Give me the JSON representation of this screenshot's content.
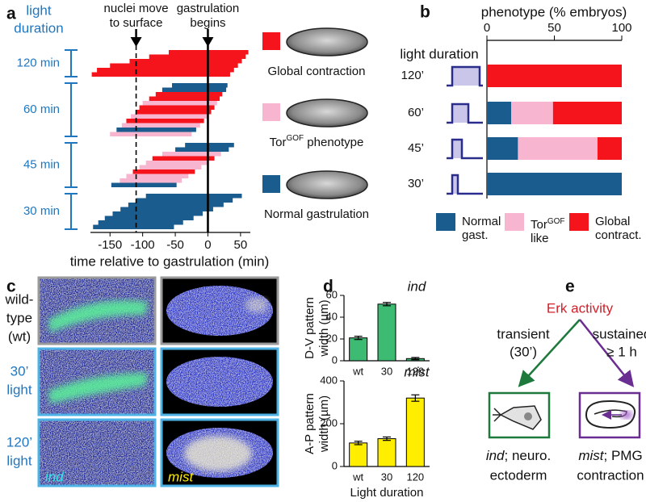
{
  "panel_labels": [
    "a",
    "b",
    "c",
    "d",
    "e"
  ],
  "chart_data": [
    {
      "type": "timeline",
      "ylabel": [
        "light",
        "duration"
      ],
      "xlabel": "time relative to gastrulation (min)",
      "xlim": [
        -180,
        65
      ],
      "xticks": [
        -150,
        -100,
        -50,
        0,
        50
      ],
      "annotations": [
        {
          "text": [
            "nuclei move",
            "to surface"
          ],
          "x": -110,
          "dashed": true
        },
        {
          "text": [
            "gastrulation",
            "begins"
          ],
          "x": 0,
          "dashed": false
        }
      ],
      "groups": [
        {
          "label": "120 min",
          "start": [
            -60,
            -90,
            -120,
            -150,
            -170,
            -178
          ],
          "end": [
            62,
            58,
            52,
            46,
            40,
            34
          ],
          "colors": [
            "#f5141b",
            "#f5141b",
            "#f5141b",
            "#f5141b",
            "#f5141b",
            "#f5141b"
          ]
        },
        {
          "label": "60 min",
          "start": [
            -55,
            -70,
            -80,
            -90,
            -100,
            -105,
            -110,
            -118,
            -125,
            -132,
            -140,
            -150
          ],
          "end": [
            30,
            28,
            22,
            18,
            14,
            10,
            5,
            0,
            -6,
            -12,
            -18,
            -25
          ],
          "colors": [
            "#1b5c8e",
            "#1b5c8e",
            "#f5141b",
            "#f5141b",
            "#f7b5cf",
            "#f5141b",
            "#f5141b",
            "#f7b5cf",
            "#f5141b",
            "#f7b5cf",
            "#1b5c8e",
            "#f7b5cf"
          ]
        },
        {
          "label": "45 min",
          "start": [
            -35,
            -50,
            -70,
            -85,
            -95,
            -105,
            -115,
            -125,
            -135,
            -148
          ],
          "end": [
            40,
            32,
            20,
            10,
            0,
            -10,
            -20,
            -30,
            -40,
            -48
          ],
          "colors": [
            "#1b5c8e",
            "#1b5c8e",
            "#f7b5cf",
            "#f5141b",
            "#f7b5cf",
            "#f7b5cf",
            "#f5141b",
            "#f7b5cf",
            "#f7b5cf",
            "#1b5c8e"
          ]
        },
        {
          "label": "30 min",
          "start": [
            -95,
            -110,
            -122,
            -134,
            -146,
            -158,
            -168,
            -176
          ],
          "end": [
            52,
            38,
            24,
            8,
            -8,
            -22,
            -38,
            -52
          ],
          "colors": [
            "#1b5c8e",
            "#1b5c8e",
            "#1b5c8e",
            "#1b5c8e",
            "#1b5c8e",
            "#1b5c8e",
            "#1b5c8e",
            "#1b5c8e"
          ]
        }
      ],
      "legend": [
        {
          "name": "Global contraction",
          "color": "#f5141b"
        },
        {
          "name": "Tor",
          "sup": "GOF",
          "suffix": " phenotype",
          "color": "#f7b5cf"
        },
        {
          "name": "Normal gastrulation",
          "color": "#1b5c8e"
        }
      ]
    },
    {
      "type": "stacked_barh",
      "xlabel": "phenotype (% embryos)",
      "ylabel": "light duration",
      "categories": [
        "120’",
        "60’",
        "45’",
        "30’"
      ],
      "xlim": [
        0,
        100
      ],
      "xticks": [
        0,
        50,
        100
      ],
      "series": [
        {
          "name": "Normal gast.",
          "color": "#1b5c8e",
          "values": [
            0,
            18,
            23,
            100
          ]
        },
        {
          "name": "Tor",
          "sup": "GOF",
          "suffix": "like",
          "color": "#f7b5cf",
          "values": [
            0,
            31,
            59,
            0
          ]
        },
        {
          "name": "Global contract.",
          "color": "#f5141b",
          "values": [
            100,
            51,
            18,
            0
          ]
        }
      ]
    },
    {
      "type": "bar",
      "title": "ind",
      "ylabel": [
        "D-V pattern",
        "width (µm)"
      ],
      "categories": [
        "wt",
        "30",
        "120"
      ],
      "values": [
        21,
        52,
        2
      ],
      "errors": [
        1.5,
        1.5,
        1
      ],
      "color": "#3dbb73",
      "ylim": [
        0,
        60
      ],
      "yticks": [
        0,
        20,
        40,
        60
      ]
    },
    {
      "type": "bar",
      "title": "mist",
      "ylabel": [
        "A-P pattern",
        "width (µm)"
      ],
      "xlabel": "Light duration",
      "categories": [
        "wt",
        "30",
        "120"
      ],
      "values": [
        110,
        130,
        320
      ],
      "errors": [
        8,
        8,
        15
      ],
      "color": "#ffee00",
      "ylim": [
        0,
        400
      ],
      "yticks": [
        0,
        200,
        400
      ]
    }
  ],
  "panel_c": {
    "rows": [
      [
        "wild-",
        "type",
        "(wt)"
      ],
      [
        "30’",
        "light"
      ],
      [
        "120’",
        "light"
      ]
    ],
    "stains": [
      "ind",
      "mist"
    ]
  },
  "panel_e": {
    "source": "Erk activity",
    "branches": [
      {
        "label": [
          "transient",
          "(30’)"
        ],
        "gene": "ind",
        "outcome": [
          "; neuro.",
          "ectoderm"
        ],
        "color": "#1e7a3c"
      },
      {
        "label": [
          "sustained",
          "≥ 1 h"
        ],
        "gene": "mist",
        "outcome": [
          "; PMG",
          "contraction"
        ],
        "color": "#6a2d91"
      }
    ]
  }
}
